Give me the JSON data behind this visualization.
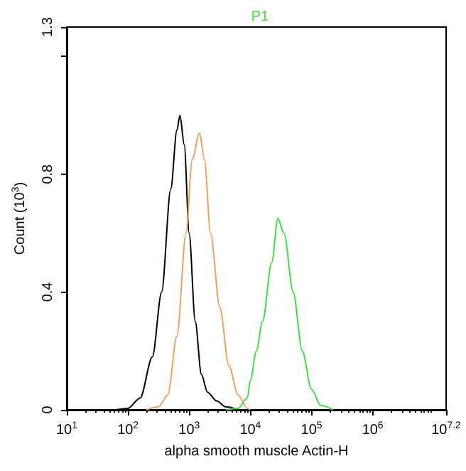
{
  "chart_data": {
    "type": "line",
    "title": "P1",
    "xlabel": "alpha smooth muscle Actin-H",
    "ylabel": "Count (10$^{3}$)",
    "log": "x",
    "grid": false,
    "marker": "none",
    "line_style": "solid",
    "xlim": [
      10,
      15848932
    ],
    "xticks": [
      {
        "value": 10,
        "label": "10$^{1}$"
      },
      {
        "value": 100,
        "label": "10$^{2}$"
      },
      {
        "value": 1000,
        "label": "10$^{3}$"
      },
      {
        "value": 10000,
        "label": "10$^{4}$"
      },
      {
        "value": 100000,
        "label": "10$^{5}$"
      },
      {
        "value": 1000000,
        "label": "10$^{6}$"
      },
      {
        "value": 15848932,
        "label": "10$^{7.2}$"
      }
    ],
    "ylim": [
      0,
      1.3
    ],
    "yticks": [
      0,
      0.4,
      0.8,
      {
        "value": 1.2,
        "label": null
      },
      1.3
    ],
    "series": [
      {
        "color": "#000000",
        "x": [
          63,
          100,
          158,
          251,
          355,
          501,
          631,
          708,
          832,
          1000,
          1259,
          1585,
          1995,
          2818,
          3981,
          6310
        ],
        "values": [
          0,
          0.005,
          0.04,
          0.18,
          0.4,
          0.75,
          0.95,
          1.0,
          0.9,
          0.6,
          0.3,
          0.12,
          0.06,
          0.03,
          0.01,
          0
        ]
      },
      {
        "color": "#f0a060",
        "x": [
          200,
          316,
          447,
          631,
          891,
          1122,
          1479,
          1778,
          2239,
          3162,
          4467,
          6310,
          8913,
          10000
        ],
        "values": [
          0,
          0.01,
          0.05,
          0.25,
          0.6,
          0.85,
          0.94,
          0.85,
          0.6,
          0.35,
          0.15,
          0.05,
          0.005,
          0
        ]
      },
      {
        "color": "#44dd44",
        "x": [
          3981,
          6310,
          8913,
          10000,
          12589,
          15849,
          22387,
          28184,
          35481,
          50119,
          70795,
          100000,
          141254,
          223872
        ],
        "values": [
          0,
          0.005,
          0.04,
          0.1,
          0.2,
          0.3,
          0.5,
          0.65,
          0.6,
          0.4,
          0.2,
          0.07,
          0.015,
          0
        ]
      }
    ]
  }
}
